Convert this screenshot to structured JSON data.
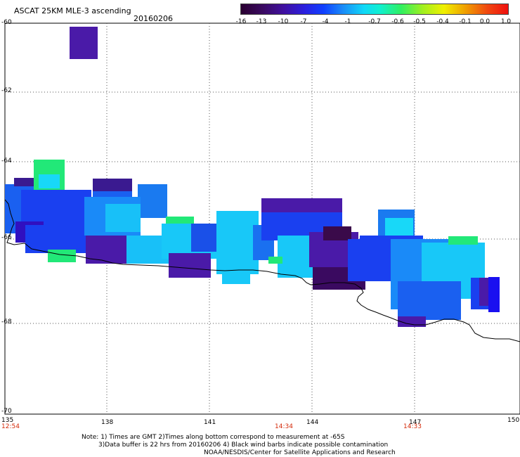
{
  "header": {
    "title": "ASCAT 25KM MLE-3 ascending",
    "date": "20160206"
  },
  "colorbar": {
    "labels": [
      "-16",
      "-13",
      "-10",
      "-7",
      "-4",
      "-1",
      "-0.7",
      "-0.6",
      "-0.5",
      "-0.4",
      "-0.1",
      "0.0",
      "1.0"
    ]
  },
  "axes": {
    "y_ticks": [
      "-60",
      "-62",
      "-64",
      "-66",
      "-68",
      "-70"
    ],
    "x_ticks": [
      "135",
      "138",
      "141",
      "144",
      "147",
      "150"
    ],
    "times": [
      "12:54",
      "14:34",
      "14:33"
    ]
  },
  "notes": {
    "line1": "Note: 1) Times are GMT 2)Times along bottom correspond to measurement at -65S",
    "line2": "3)Data buffer is 22 hrs from 20160206 4) Black wind barbs indicate possible contamination",
    "line3": "NOAA/NESDIS/Center for Satellite Applications and Research"
  },
  "colors": {
    "dark_purple": "#3a0a4a",
    "purple": "#4a1aa8",
    "blue": "#1a30e8",
    "medium_blue": "#1a7af0",
    "cyan": "#18d8f8",
    "green": "#22e878"
  }
}
